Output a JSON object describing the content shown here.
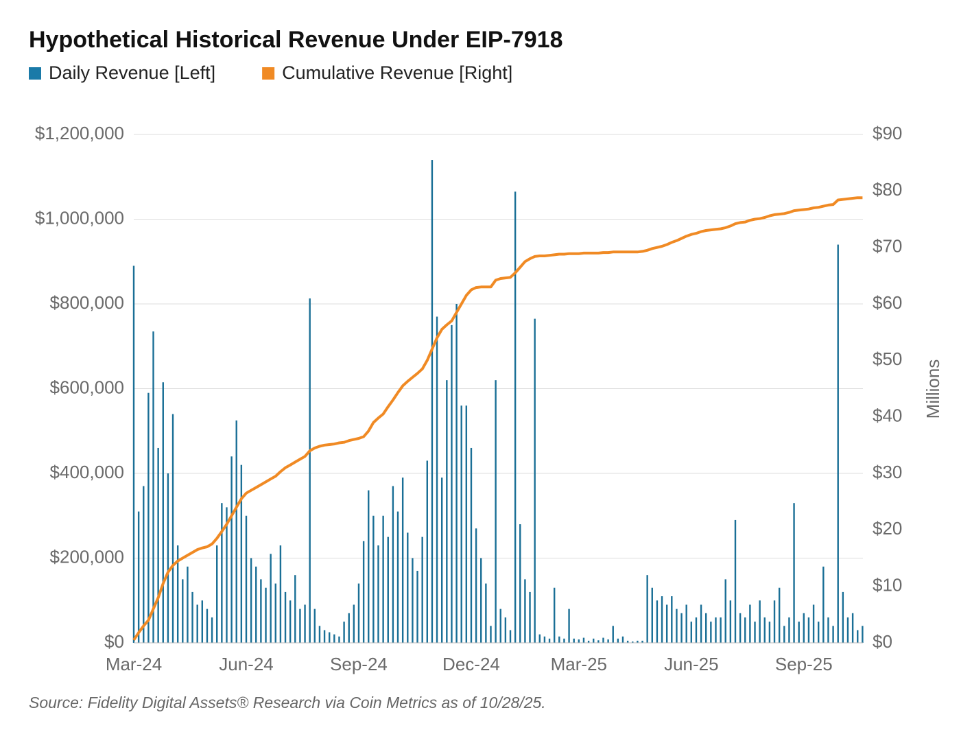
{
  "chart_data": {
    "type": "bar-line",
    "title": "Hypothetical Historical Revenue Under EIP-7918",
    "y2label": "Millions",
    "source": "Source: Fidelity Digital Assets® Research via Coin Metrics as of 10/28/25.",
    "categories": [
      "Mar-24",
      null,
      null,
      null,
      null,
      null,
      null,
      null,
      null,
      null,
      null,
      null,
      null,
      null,
      null,
      null,
      null,
      null,
      null,
      null,
      null,
      null,
      null,
      "Jun-24",
      null,
      null,
      null,
      null,
      null,
      null,
      null,
      null,
      null,
      null,
      null,
      null,
      null,
      null,
      null,
      null,
      null,
      null,
      null,
      null,
      null,
      null,
      "Sep-24",
      null,
      null,
      null,
      null,
      null,
      null,
      null,
      null,
      null,
      null,
      null,
      null,
      null,
      null,
      null,
      null,
      null,
      null,
      null,
      null,
      null,
      null,
      "Dec-24",
      null,
      null,
      null,
      null,
      null,
      null,
      null,
      null,
      null,
      null,
      null,
      null,
      null,
      null,
      null,
      null,
      null,
      null,
      null,
      null,
      null,
      "Mar-25",
      null,
      null,
      null,
      null,
      null,
      null,
      null,
      null,
      null,
      null,
      null,
      null,
      null,
      null,
      null,
      null,
      null,
      null,
      null,
      null,
      null,
      null,
      "Jun-25",
      null,
      null,
      null,
      null,
      null,
      null,
      null,
      null,
      null,
      null,
      null,
      null,
      null,
      null,
      null,
      null,
      null,
      null,
      null,
      null,
      null,
      null,
      "Sep-25",
      null,
      null,
      null,
      null,
      null,
      null,
      null,
      null,
      null,
      null,
      null,
      null
    ],
    "series": [
      {
        "name": "Daily Revenue [Left]",
        "color": "#1a6f96",
        "legend_color": "#1a7aa8",
        "kind": "bar",
        "axis": "y",
        "values": [
          890000,
          310000,
          370000,
          590000,
          735000,
          460000,
          615000,
          400000,
          540000,
          230000,
          150000,
          180000,
          120000,
          90000,
          100000,
          80000,
          60000,
          230000,
          330000,
          320000,
          440000,
          525000,
          420000,
          300000,
          200000,
          180000,
          150000,
          130000,
          210000,
          140000,
          230000,
          120000,
          100000,
          160000,
          80000,
          90000,
          813000,
          80000,
          40000,
          30000,
          25000,
          20000,
          15000,
          50000,
          70000,
          90000,
          140000,
          240000,
          360000,
          300000,
          230000,
          300000,
          250000,
          370000,
          310000,
          390000,
          260000,
          200000,
          170000,
          250000,
          430000,
          1140000,
          770000,
          390000,
          620000,
          750000,
          800000,
          560000,
          560000,
          460000,
          270000,
          200000,
          140000,
          40000,
          620000,
          80000,
          60000,
          30000,
          1065000,
          280000,
          150000,
          120000,
          765000,
          20000,
          15000,
          10000,
          130000,
          15000,
          10000,
          80000,
          10000,
          8000,
          12000,
          5000,
          10000,
          6000,
          12000,
          8000,
          40000,
          10000,
          15000,
          5000,
          3000,
          5000,
          5000,
          160000,
          130000,
          100000,
          110000,
          90000,
          110000,
          80000,
          70000,
          90000,
          50000,
          60000,
          90000,
          70000,
          50000,
          60000,
          60000,
          150000,
          100000,
          290000,
          70000,
          60000,
          90000,
          50000,
          100000,
          60000,
          50000,
          100000,
          130000,
          40000,
          60000,
          330000,
          50000,
          70000,
          60000,
          90000,
          50000,
          180000,
          60000,
          40000,
          940000,
          120000,
          60000,
          70000,
          30000,
          40000
        ]
      },
      {
        "name": "Cumulative Revenue [Right]",
        "color": "#f08a24",
        "kind": "line",
        "axis": "y2",
        "values": [
          0.5,
          1.8,
          3,
          4,
          6,
          8,
          10.5,
          12.5,
          13.7,
          14.5,
          15,
          15.5,
          16,
          16.5,
          16.8,
          17,
          17.5,
          18.5,
          19.7,
          21,
          22.5,
          24,
          25.5,
          26.5,
          27,
          27.5,
          28,
          28.5,
          29,
          29.5,
          30.3,
          31,
          31.5,
          32,
          32.5,
          33,
          34,
          34.5,
          34.8,
          35,
          35.1,
          35.2,
          35.4,
          35.5,
          35.8,
          36,
          36.2,
          36.5,
          37.5,
          39,
          39.8,
          40.5,
          41.8,
          43,
          44.3,
          45.5,
          46.3,
          47,
          47.7,
          48.5,
          50,
          52,
          54,
          55.5,
          56.3,
          57,
          58.5,
          60,
          61.5,
          62.5,
          62.9,
          63,
          63,
          63,
          64.2,
          64.5,
          64.6,
          64.7,
          65.5,
          66.5,
          67.5,
          68,
          68.4,
          68.5,
          68.5,
          68.6,
          68.7,
          68.8,
          68.8,
          68.9,
          68.9,
          68.9,
          69,
          69,
          69,
          69,
          69.1,
          69.1,
          69.2,
          69.2,
          69.2,
          69.2,
          69.2,
          69.2,
          69.3,
          69.5,
          69.8,
          70,
          70.2,
          70.5,
          70.9,
          71.2,
          71.6,
          72,
          72.3,
          72.5,
          72.8,
          73,
          73.1,
          73.2,
          73.3,
          73.5,
          73.8,
          74.2,
          74.4,
          74.5,
          74.8,
          75,
          75.1,
          75.3,
          75.6,
          75.8,
          75.9,
          76,
          76.2,
          76.5,
          76.6,
          76.7,
          76.8,
          77,
          77.1,
          77.3,
          77.5,
          77.6,
          78.4,
          78.5,
          78.6,
          78.7,
          78.8,
          78.8
        ]
      }
    ],
    "ylim": [
      0,
      1200000
    ],
    "yticks": [
      {
        "value": 0,
        "label": "$0"
      },
      {
        "value": 200000,
        "label": "$200,000"
      },
      {
        "value": 400000,
        "label": "$400,000"
      },
      {
        "value": 600000,
        "label": "$600,000"
      },
      {
        "value": 800000,
        "label": "$800,000"
      },
      {
        "value": 1000000,
        "label": "$1,000,000"
      },
      {
        "value": 1200000,
        "label": "$1,200,000"
      }
    ],
    "y2lim": [
      0,
      90
    ],
    "y2ticks": [
      {
        "value": 0,
        "label": "$0"
      },
      {
        "value": 10,
        "label": "$10"
      },
      {
        "value": 20,
        "label": "$20"
      },
      {
        "value": 30,
        "label": "$30"
      },
      {
        "value": 40,
        "label": "$40"
      },
      {
        "value": 50,
        "label": "$50"
      },
      {
        "value": 60,
        "label": "$60"
      },
      {
        "value": 70,
        "label": "$70"
      },
      {
        "value": 80,
        "label": "$80"
      },
      {
        "value": 90,
        "label": "$90"
      }
    ],
    "grid": true
  }
}
